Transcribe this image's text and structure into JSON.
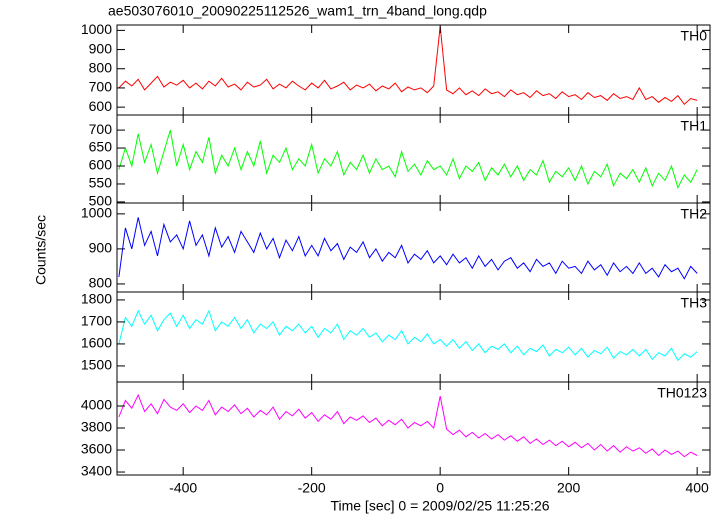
{
  "chart_data": {
    "type": "line",
    "title": "ae503076010_20090225112526_wam1_trn_4band_long.qdp",
    "ylabel": "Counts/sec",
    "xlabel": "Time [sec] 0 = 2009/02/25 11:25:26",
    "xlim": [
      -503,
      420
    ],
    "xticks": [
      -400,
      -200,
      0,
      200,
      400
    ],
    "x": [
      -500,
      -490,
      -480,
      -470,
      -460,
      -450,
      -440,
      -430,
      -420,
      -410,
      -400,
      -390,
      -380,
      -370,
      -360,
      -350,
      -340,
      -330,
      -320,
      -310,
      -300,
      -290,
      -280,
      -270,
      -260,
      -250,
      -240,
      -230,
      -220,
      -210,
      -200,
      -190,
      -180,
      -170,
      -160,
      -150,
      -140,
      -130,
      -120,
      -110,
      -100,
      -90,
      -80,
      -70,
      -60,
      -50,
      -40,
      -30,
      -20,
      -10,
      0,
      10,
      20,
      30,
      40,
      50,
      60,
      70,
      80,
      90,
      100,
      110,
      120,
      130,
      140,
      150,
      160,
      170,
      180,
      190,
      200,
      210,
      220,
      230,
      240,
      250,
      260,
      270,
      280,
      290,
      300,
      310,
      320,
      330,
      340,
      350,
      360,
      370,
      380,
      390,
      400
    ],
    "series": [
      {
        "name": "TH0",
        "color": "#ff0000",
        "ylim": [
          559,
          1028
        ],
        "yticks": [
          600,
          700,
          800,
          900,
          1000
        ],
        "values": [
          700,
          735,
          710,
          745,
          690,
          725,
          760,
          705,
          730,
          715,
          740,
          700,
          725,
          695,
          735,
          710,
          750,
          705,
          720,
          690,
          730,
          705,
          715,
          745,
          695,
          720,
          700,
          735,
          710,
          690,
          725,
          700,
          740,
          695,
          710,
          730,
          690,
          715,
          700,
          720,
          685,
          710,
          695,
          725,
          680,
          705,
          690,
          700,
          675,
          710,
          1020,
          690,
          670,
          700,
          665,
          685,
          660,
          695,
          670,
          680,
          655,
          690,
          665,
          675,
          650,
          685,
          660,
          670,
          645,
          680,
          655,
          665,
          640,
          675,
          650,
          660,
          635,
          670,
          645,
          655,
          640,
          700,
          640,
          655,
          625,
          650,
          630,
          660,
          615,
          645,
          635
        ]
      },
      {
        "name": "TH1",
        "color": "#00ff00",
        "ylim": [
          497,
          742
        ],
        "yticks": [
          500,
          550,
          600,
          650,
          700
        ],
        "values": [
          590,
          650,
          600,
          690,
          610,
          660,
          580,
          640,
          700,
          600,
          660,
          590,
          640,
          610,
          680,
          580,
          630,
          600,
          650,
          590,
          640,
          600,
          670,
          580,
          630,
          610,
          650,
          590,
          620,
          600,
          660,
          580,
          620,
          600,
          640,
          575,
          610,
          590,
          630,
          580,
          620,
          590,
          600,
          570,
          640,
          585,
          605,
          575,
          615,
          590,
          600,
          575,
          620,
          565,
          600,
          585,
          610,
          560,
          595,
          575,
          605,
          570,
          600,
          560,
          590,
          575,
          615,
          555,
          585,
          570,
          595,
          560,
          600,
          550,
          585,
          570,
          605,
          545,
          580,
          565,
          590,
          555,
          595,
          545,
          580,
          560,
          600,
          540,
          575,
          555,
          590
        ]
      },
      {
        "name": "TH2",
        "color": "#0000ff",
        "ylim": [
          777,
          1031
        ],
        "yticks": [
          800,
          900,
          1000
        ],
        "values": [
          820,
          960,
          900,
          990,
          910,
          950,
          880,
          970,
          920,
          940,
          900,
          980,
          910,
          940,
          880,
          960,
          905,
          935,
          890,
          950,
          920,
          890,
          945,
          900,
          930,
          875,
          925,
          895,
          935,
          880,
          910,
          880,
          930,
          895,
          915,
          870,
          905,
          890,
          920,
          875,
          900,
          865,
          890,
          875,
          910,
          860,
          885,
          870,
          895,
          860,
          880,
          855,
          885,
          860,
          875,
          845,
          880,
          850,
          870,
          840,
          865,
          875,
          845,
          860,
          835,
          870,
          850,
          860,
          830,
          865,
          845,
          850,
          830,
          865,
          840,
          855,
          825,
          860,
          835,
          850,
          830,
          860,
          830,
          845,
          820,
          855,
          835,
          845,
          815,
          850,
          830
        ]
      },
      {
        "name": "TH3",
        "color": "#00ffff",
        "ylim": [
          1427,
          1836
        ],
        "yticks": [
          1500,
          1600,
          1700,
          1800
        ],
        "values": [
          1600,
          1720,
          1680,
          1750,
          1690,
          1730,
          1660,
          1710,
          1740,
          1680,
          1730,
          1670,
          1710,
          1690,
          1750,
          1660,
          1700,
          1680,
          1720,
          1670,
          1710,
          1650,
          1690,
          1670,
          1700,
          1640,
          1680,
          1660,
          1690,
          1650,
          1680,
          1630,
          1670,
          1650,
          1690,
          1620,
          1660,
          1640,
          1670,
          1630,
          1650,
          1610,
          1640,
          1620,
          1660,
          1600,
          1630,
          1610,
          1645,
          1600,
          1620,
          1590,
          1620,
          1580,
          1610,
          1570,
          1600,
          1560,
          1590,
          1575,
          1600,
          1560,
          1590,
          1550,
          1580,
          1565,
          1595,
          1545,
          1575,
          1560,
          1585,
          1550,
          1580,
          1540,
          1570,
          1555,
          1585,
          1535,
          1565,
          1550,
          1575,
          1545,
          1575,
          1530,
          1560,
          1545,
          1580,
          1525,
          1555,
          1540,
          1565
        ]
      },
      {
        "name": "TH0123",
        "color": "#ff00ff",
        "ylim": [
          3373,
          4218
        ],
        "yticks": [
          3400,
          3600,
          3800,
          4000
        ],
        "values": [
          3900,
          4050,
          3980,
          4100,
          3950,
          4020,
          3930,
          4060,
          3990,
          3960,
          4020,
          3940,
          4000,
          3960,
          4050,
          3920,
          3990,
          3950,
          4010,
          3930,
          3980,
          3900,
          3960,
          3920,
          3990,
          3880,
          3950,
          3910,
          3970,
          3890,
          3940,
          3860,
          3920,
          3880,
          3950,
          3840,
          3900,
          3870,
          3910,
          3850,
          3890,
          3820,
          3870,
          3830,
          3880,
          3800,
          3850,
          3820,
          3860,
          3800,
          4090,
          3790,
          3740,
          3780,
          3720,
          3760,
          3710,
          3750,
          3700,
          3740,
          3690,
          3730,
          3680,
          3720,
          3660,
          3700,
          3650,
          3690,
          3640,
          3680,
          3630,
          3670,
          3620,
          3660,
          3600,
          3650,
          3590,
          3640,
          3580,
          3630,
          3590,
          3620,
          3570,
          3610,
          3550,
          3600,
          3560,
          3590,
          3540,
          3580,
          3550
        ]
      }
    ]
  }
}
